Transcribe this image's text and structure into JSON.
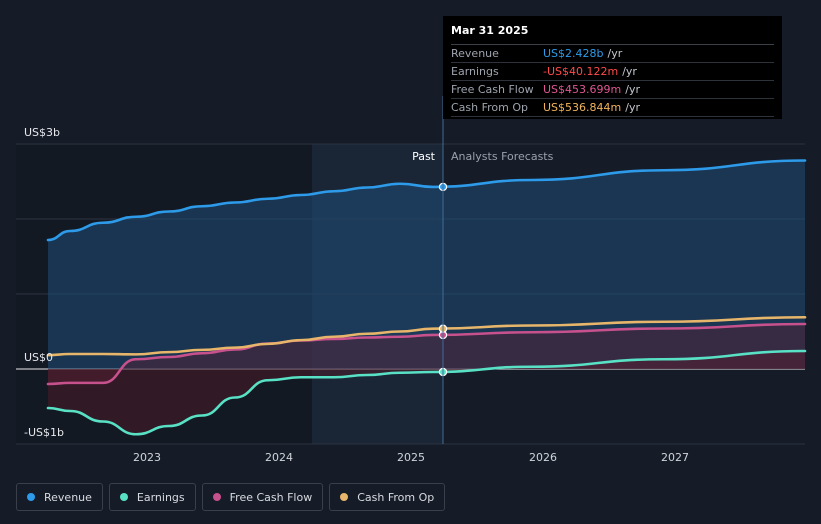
{
  "chart_data": {
    "type": "line",
    "x_ticks": [
      "2023",
      "2024",
      "2025",
      "2026",
      "2027"
    ],
    "y_ticks": [
      {
        "value": 3000,
        "label": "US$3b"
      },
      {
        "value": 0,
        "label": "US$0"
      },
      {
        "value": -1000,
        "label": "-US$1b"
      }
    ],
    "ylim": [
      -1000,
      3000
    ],
    "units": "US$ millions per year",
    "past_label": "Past",
    "forecast_label": "Analysts Forecasts",
    "divider_date": "Mar 31 2025",
    "grid": true,
    "series": [
      {
        "name": "Revenue",
        "color": "#2d9bea",
        "x": [
          "2022-03",
          "2022-06",
          "2022-09",
          "2022-12",
          "2023-03",
          "2023-06",
          "2023-09",
          "2023-12",
          "2024-03",
          "2024-06",
          "2024-09",
          "2024-12",
          "2025-03",
          "2025-12",
          "2026-12",
          "2027-12"
        ],
        "values": [
          1720,
          1840,
          1950,
          2030,
          2100,
          2170,
          2220,
          2270,
          2320,
          2370,
          2420,
          2470,
          2428,
          2520,
          2650,
          2780
        ]
      },
      {
        "name": "Earnings",
        "color": "#58e1c5",
        "x": [
          "2022-03",
          "2022-06",
          "2022-09",
          "2022-12",
          "2023-03",
          "2023-06",
          "2023-09",
          "2023-12",
          "2024-03",
          "2024-06",
          "2024-09",
          "2024-12",
          "2025-03",
          "2025-12",
          "2026-12",
          "2027-12"
        ],
        "values": [
          -520,
          -560,
          -700,
          -870,
          -760,
          -620,
          -380,
          -150,
          -110,
          -110,
          -80,
          -50,
          -40,
          30,
          130,
          240
        ]
      },
      {
        "name": "Free Cash Flow",
        "color": "#c7518d",
        "x": [
          "2022-03",
          "2022-06",
          "2022-09",
          "2022-12",
          "2023-03",
          "2023-06",
          "2023-09",
          "2023-12",
          "2024-03",
          "2024-06",
          "2024-09",
          "2024-12",
          "2025-03",
          "2025-12",
          "2026-12",
          "2027-12"
        ],
        "values": [
          -200,
          -185,
          -185,
          130,
          160,
          210,
          260,
          340,
          380,
          400,
          420,
          430,
          453.699,
          490,
          540,
          600
        ]
      },
      {
        "name": "Cash From Op",
        "color": "#e7b66a",
        "x": [
          "2022-03",
          "2022-06",
          "2022-09",
          "2022-12",
          "2023-03",
          "2023-06",
          "2023-09",
          "2023-12",
          "2024-03",
          "2024-06",
          "2024-09",
          "2024-12",
          "2025-03",
          "2025-12",
          "2026-12",
          "2027-12"
        ],
        "values": [
          185,
          200,
          200,
          195,
          225,
          255,
          285,
          335,
          385,
          430,
          470,
          500,
          536.844,
          580,
          630,
          690
        ]
      }
    ]
  },
  "tooltip": {
    "date": "Mar 31 2025",
    "rows": [
      {
        "label": "Revenue",
        "value": "US$2.428b",
        "unit": "/yr",
        "color": "#2d9bea"
      },
      {
        "label": "Earnings",
        "value": "-US$40.122m",
        "unit": "/yr",
        "color": "#ff4a4a"
      },
      {
        "label": "Free Cash Flow",
        "value": "US$453.699m",
        "unit": "/yr",
        "color": "#e05694"
      },
      {
        "label": "Cash From Op",
        "value": "US$536.844m",
        "unit": "/yr",
        "color": "#f2b45a"
      }
    ]
  },
  "legend": [
    {
      "label": "Revenue",
      "color": "#2d9bea"
    },
    {
      "label": "Earnings",
      "color": "#58e1c5"
    },
    {
      "label": "Free Cash Flow",
      "color": "#c7518d"
    },
    {
      "label": "Cash From Op",
      "color": "#e7b66a"
    }
  ]
}
